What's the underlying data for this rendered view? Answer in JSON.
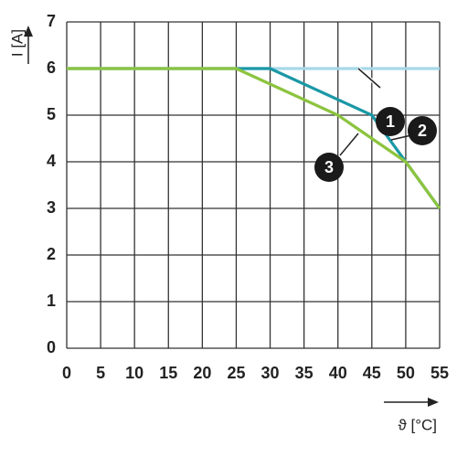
{
  "chart_data": {
    "type": "line",
    "xlabel": "ϑ [°C]",
    "ylabel": "I [A]",
    "xlim": [
      0,
      55
    ],
    "xticks": [
      0,
      5,
      10,
      15,
      20,
      25,
      30,
      35,
      40,
      45,
      50,
      55
    ],
    "ylim": [
      0,
      7
    ],
    "yticks": [
      0,
      1,
      2,
      3,
      4,
      5,
      6,
      7
    ],
    "grid": true,
    "series": [
      {
        "name": "1",
        "color": "#a6d8ea",
        "x": [
          0,
          55
        ],
        "values": [
          6,
          6
        ]
      },
      {
        "name": "2",
        "color": "#1b98a6",
        "x": [
          0,
          30,
          45,
          50,
          55
        ],
        "values": [
          6,
          6,
          5,
          4,
          3
        ]
      },
      {
        "name": "3",
        "color": "#8cc43f",
        "x": [
          0,
          25,
          40,
          50,
          55
        ],
        "values": [
          6,
          6,
          5,
          4,
          3
        ]
      }
    ]
  }
}
